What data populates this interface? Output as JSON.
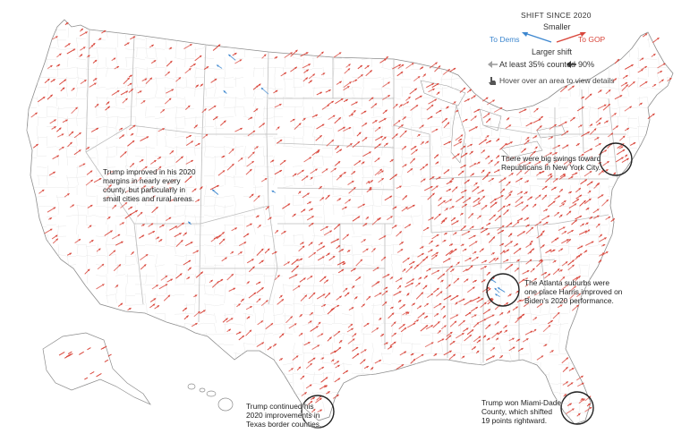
{
  "legend": {
    "title": "SHIFT SINCE 2020",
    "smaller": "Smaller",
    "larger": "Larger shift",
    "to_dems": "To Dems",
    "to_gop": "To GOP",
    "counted_low": "At least 35% counted",
    "counted_high": "90%",
    "hover_hint": "Hover over an area to view details"
  },
  "colors": {
    "gop": "#d9463b",
    "dems": "#3d87cf",
    "border": "#bdbdbd",
    "land": "#ffffff"
  },
  "icons": {
    "arrow_low": "gray-arrow-icon",
    "arrow_high": "dark-arrow-icon",
    "pointer": "hand-pointer-icon"
  },
  "annotations": {
    "trump_improved": [
      "Trump improved in his 2020",
      "margins in nearly every",
      "county, but particularly in",
      "small cities and rural areas."
    ],
    "nyc": [
      "There were big swings toward",
      "Republicans in New York City."
    ],
    "atlanta": [
      "The Atlanta suburbs were",
      "one place Harris improved on",
      "Biden's 2020 performance."
    ],
    "texas": [
      "Trump continued his",
      "2020 improvements in",
      "Texas border counties."
    ],
    "miami": [
      "Trump won Miami-Dade",
      "County, which shifted",
      "19 points rightward."
    ]
  }
}
